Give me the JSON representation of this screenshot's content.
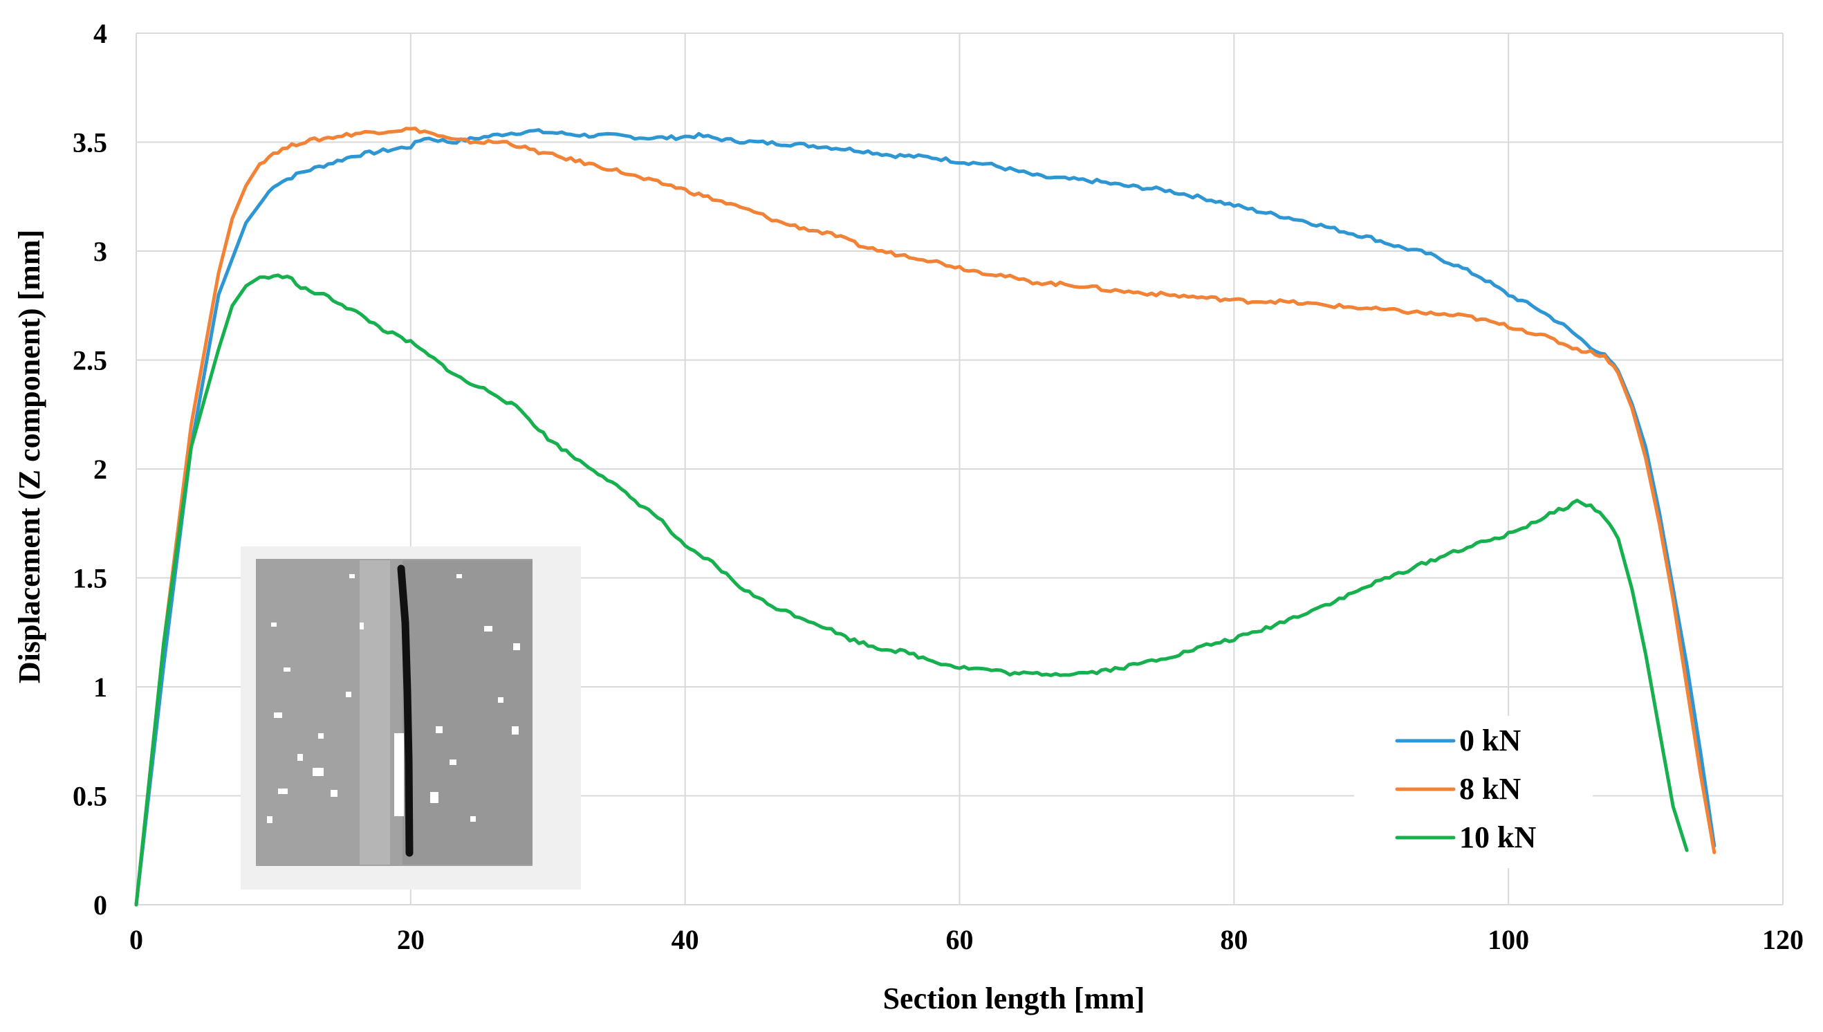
{
  "chart_data": {
    "type": "line",
    "title": "",
    "xlabel": "Section length [mm]",
    "ylabel": "Displacement (Z component)  [mm]",
    "xlim": [
      0,
      120
    ],
    "ylim": [
      0,
      4
    ],
    "x_ticks": [
      0,
      20,
      40,
      60,
      80,
      100,
      120
    ],
    "y_ticks": [
      0,
      0.5,
      1,
      1.5,
      2,
      2.5,
      3,
      3.5,
      4
    ],
    "y_tick_labels": [
      "0",
      "0.5",
      "1",
      "1.5",
      "2",
      "2.5",
      "3",
      "3.5",
      "4"
    ],
    "x_tick_labels": [
      "0",
      "20",
      "40",
      "60",
      "80",
      "100",
      "120"
    ],
    "grid": true,
    "legend_position": "bottom-right",
    "inset": "grayscale surface scan of the specimen with a dark vertical crack line",
    "series": [
      {
        "name": "0 kN",
        "color": "#2e97d3",
        "points": [
          [
            0,
            0
          ],
          [
            2,
            1.1
          ],
          [
            4,
            2.1
          ],
          [
            6,
            2.8
          ],
          [
            8,
            3.13
          ],
          [
            10,
            3.3
          ],
          [
            12,
            3.36
          ],
          [
            14,
            3.4
          ],
          [
            16,
            3.44
          ],
          [
            18,
            3.46
          ],
          [
            20,
            3.48
          ],
          [
            21,
            3.52
          ],
          [
            23,
            3.5
          ],
          [
            25,
            3.52
          ],
          [
            27,
            3.54
          ],
          [
            29,
            3.55
          ],
          [
            31,
            3.54
          ],
          [
            33,
            3.53
          ],
          [
            35,
            3.53
          ],
          [
            37,
            3.52
          ],
          [
            39,
            3.52
          ],
          [
            41,
            3.53
          ],
          [
            43,
            3.51
          ],
          [
            45,
            3.5
          ],
          [
            48,
            3.49
          ],
          [
            50,
            3.48
          ],
          [
            53,
            3.46
          ],
          [
            55,
            3.44
          ],
          [
            58,
            3.43
          ],
          [
            60,
            3.41
          ],
          [
            62,
            3.4
          ],
          [
            64,
            3.37
          ],
          [
            66,
            3.34
          ],
          [
            68,
            3.33
          ],
          [
            70,
            3.32
          ],
          [
            72,
            3.3
          ],
          [
            75,
            3.28
          ],
          [
            78,
            3.24
          ],
          [
            80,
            3.21
          ],
          [
            82,
            3.18
          ],
          [
            85,
            3.14
          ],
          [
            88,
            3.09
          ],
          [
            90,
            3.06
          ],
          [
            92,
            3.02
          ],
          [
            94,
            2.99
          ],
          [
            96,
            2.94
          ],
          [
            98,
            2.88
          ],
          [
            100,
            2.8
          ],
          [
            102,
            2.74
          ],
          [
            104,
            2.66
          ],
          [
            106,
            2.56
          ],
          [
            107,
            2.52
          ],
          [
            108,
            2.45
          ],
          [
            109,
            2.3
          ],
          [
            110,
            2.1
          ],
          [
            111,
            1.8
          ],
          [
            112,
            1.45
          ],
          [
            113,
            1.1
          ],
          [
            114,
            0.7
          ],
          [
            115,
            0.27
          ]
        ]
      },
      {
        "name": "8 kN",
        "color": "#f28236",
        "points": [
          [
            0,
            0
          ],
          [
            2,
            1.2
          ],
          [
            4,
            2.2
          ],
          [
            6,
            2.9
          ],
          [
            7,
            3.15
          ],
          [
            8,
            3.3
          ],
          [
            9,
            3.4
          ],
          [
            10,
            3.45
          ],
          [
            12,
            3.5
          ],
          [
            14,
            3.52
          ],
          [
            16,
            3.54
          ],
          [
            18,
            3.55
          ],
          [
            20,
            3.56
          ],
          [
            21,
            3.55
          ],
          [
            23,
            3.51
          ],
          [
            25,
            3.5
          ],
          [
            27,
            3.5
          ],
          [
            29,
            3.46
          ],
          [
            31,
            3.43
          ],
          [
            33,
            3.4
          ],
          [
            35,
            3.37
          ],
          [
            37,
            3.33
          ],
          [
            39,
            3.3
          ],
          [
            41,
            3.26
          ],
          [
            43,
            3.22
          ],
          [
            45,
            3.18
          ],
          [
            47,
            3.13
          ],
          [
            49,
            3.1
          ],
          [
            51,
            3.07
          ],
          [
            53,
            3.02
          ],
          [
            55,
            2.99
          ],
          [
            57,
            2.97
          ],
          [
            59,
            2.94
          ],
          [
            61,
            2.91
          ],
          [
            63,
            2.89
          ],
          [
            65,
            2.86
          ],
          [
            67,
            2.85
          ],
          [
            69,
            2.84
          ],
          [
            71,
            2.82
          ],
          [
            73,
            2.81
          ],
          [
            75,
            2.8
          ],
          [
            77,
            2.79
          ],
          [
            79,
            2.78
          ],
          [
            81,
            2.77
          ],
          [
            83,
            2.77
          ],
          [
            85,
            2.76
          ],
          [
            87,
            2.75
          ],
          [
            89,
            2.74
          ],
          [
            91,
            2.73
          ],
          [
            93,
            2.72
          ],
          [
            95,
            2.71
          ],
          [
            97,
            2.7
          ],
          [
            99,
            2.67
          ],
          [
            101,
            2.64
          ],
          [
            103,
            2.6
          ],
          [
            105,
            2.55
          ],
          [
            107,
            2.52
          ],
          [
            108,
            2.44
          ],
          [
            109,
            2.28
          ],
          [
            110,
            2.05
          ],
          [
            111,
            1.75
          ],
          [
            112,
            1.4
          ],
          [
            113,
            1.0
          ],
          [
            114,
            0.6
          ],
          [
            115,
            0.24
          ]
        ]
      },
      {
        "name": "10 kN",
        "color": "#17b04e",
        "points": [
          [
            0,
            0
          ],
          [
            2,
            1.2
          ],
          [
            4,
            2.1
          ],
          [
            6,
            2.55
          ],
          [
            7,
            2.75
          ],
          [
            8,
            2.84
          ],
          [
            9,
            2.88
          ],
          [
            10,
            2.88
          ],
          [
            11,
            2.89
          ],
          [
            12,
            2.83
          ],
          [
            14,
            2.79
          ],
          [
            16,
            2.72
          ],
          [
            18,
            2.64
          ],
          [
            20,
            2.58
          ],
          [
            22,
            2.49
          ],
          [
            24,
            2.4
          ],
          [
            26,
            2.35
          ],
          [
            28,
            2.27
          ],
          [
            30,
            2.14
          ],
          [
            32,
            2.05
          ],
          [
            34,
            1.97
          ],
          [
            36,
            1.87
          ],
          [
            38,
            1.78
          ],
          [
            40,
            1.64
          ],
          [
            42,
            1.57
          ],
          [
            44,
            1.46
          ],
          [
            46,
            1.38
          ],
          [
            48,
            1.33
          ],
          [
            50,
            1.28
          ],
          [
            52,
            1.22
          ],
          [
            54,
            1.18
          ],
          [
            56,
            1.16
          ],
          [
            58,
            1.12
          ],
          [
            60,
            1.09
          ],
          [
            62,
            1.08
          ],
          [
            64,
            1.06
          ],
          [
            66,
            1.06
          ],
          [
            68,
            1.06
          ],
          [
            70,
            1.07
          ],
          [
            72,
            1.09
          ],
          [
            74,
            1.12
          ],
          [
            76,
            1.15
          ],
          [
            78,
            1.19
          ],
          [
            80,
            1.22
          ],
          [
            82,
            1.26
          ],
          [
            84,
            1.31
          ],
          [
            86,
            1.36
          ],
          [
            88,
            1.41
          ],
          [
            90,
            1.47
          ],
          [
            92,
            1.52
          ],
          [
            94,
            1.57
          ],
          [
            96,
            1.62
          ],
          [
            98,
            1.66
          ],
          [
            100,
            1.7
          ],
          [
            102,
            1.76
          ],
          [
            104,
            1.82
          ],
          [
            105,
            1.85
          ],
          [
            106,
            1.83
          ],
          [
            107,
            1.78
          ],
          [
            108,
            1.68
          ],
          [
            109,
            1.45
          ],
          [
            110,
            1.15
          ],
          [
            111,
            0.8
          ],
          [
            112,
            0.45
          ],
          [
            113,
            0.25
          ]
        ]
      }
    ]
  }
}
